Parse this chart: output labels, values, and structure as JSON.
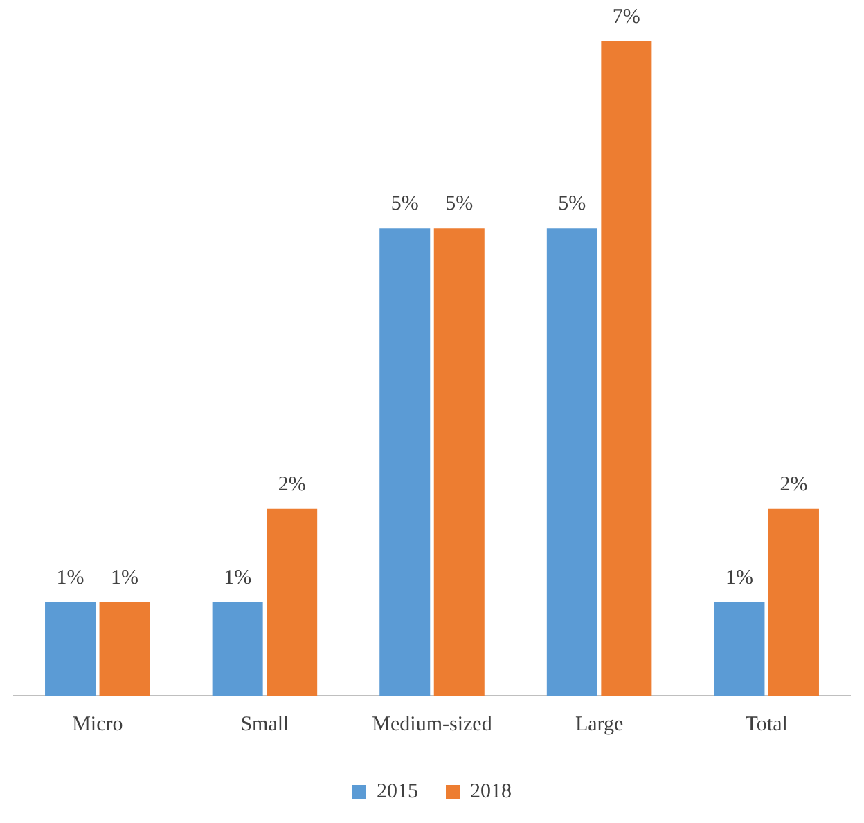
{
  "chart_data": {
    "type": "bar",
    "categories": [
      "Micro",
      "Small",
      "Medium-sized",
      "Large",
      "Total"
    ],
    "series": [
      {
        "name": "2015",
        "color": "#5b9bd5",
        "values": [
          1,
          1,
          5,
          5,
          1
        ],
        "value_labels": [
          "1%",
          "1%",
          "5%",
          "5%",
          "1%"
        ]
      },
      {
        "name": "2018",
        "color": "#ed7d31",
        "values": [
          1,
          2,
          5,
          7,
          2
        ],
        "value_labels": [
          "1%",
          "2%",
          "5%",
          "7%",
          "2%"
        ]
      }
    ],
    "legend": "bottom",
    "grid": false
  }
}
